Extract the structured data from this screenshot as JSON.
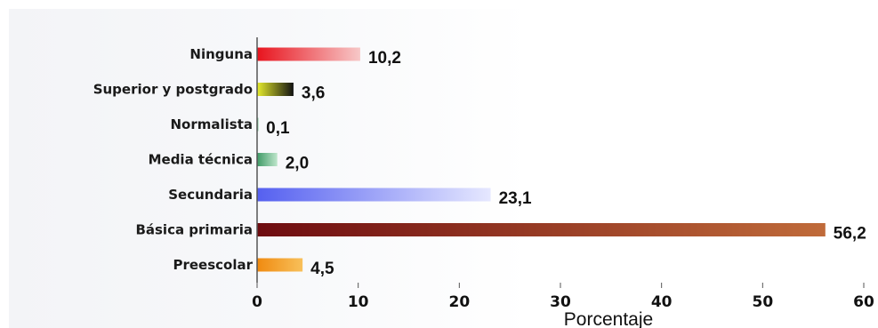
{
  "chart_data": {
    "type": "bar",
    "orientation": "horizontal",
    "categories": [
      "Ninguna",
      "Superior y postgrado",
      "Normalista",
      "Media técnica",
      "Secundaria",
      "Básica primaria",
      "Preescolar"
    ],
    "values": [
      10.2,
      3.6,
      0.1,
      2.0,
      23.1,
      56.2,
      4.5
    ],
    "value_labels": [
      "10,2",
      "3,6",
      "0,1",
      "2,0",
      "23,1",
      "56,2",
      "4,5"
    ],
    "title": "",
    "xlabel": "Porcentaje",
    "ylabel": "",
    "xlim": [
      0,
      60
    ],
    "xticks": [
      0,
      10,
      20,
      30,
      40,
      50,
      60
    ],
    "xtick_labels": [
      "0",
      "10",
      "20",
      "30",
      "40",
      "50",
      "60"
    ],
    "grid": false,
    "legend": "none",
    "bar_colors": [
      [
        "#e8141e",
        "#f7c8c8"
      ],
      [
        "#e6ec2c",
        "#111111"
      ],
      [
        "#8fd0a6",
        "#8fd0a6"
      ],
      [
        "#3f9a66",
        "#bfe6cc"
      ],
      [
        "#5560f0",
        "#e6e8ff"
      ],
      [
        "#6e0c10",
        "#c06b3a"
      ],
      [
        "#f08a10",
        "#f8c05a"
      ]
    ]
  }
}
